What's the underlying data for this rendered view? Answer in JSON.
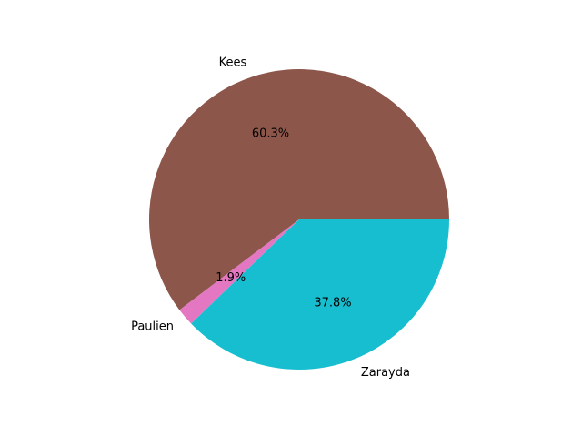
{
  "chart_data": {
    "type": "pie",
    "categories": [
      "Kees",
      "Paulien",
      "Zarayda"
    ],
    "values": [
      60.3,
      1.9,
      37.8
    ],
    "percent_labels": [
      "60.3%",
      "1.9%",
      "37.8%"
    ],
    "colors": [
      "#8c564b",
      "#e377c2",
      "#17becf"
    ],
    "start_angle_deg": 0,
    "direction": "counterclockwise",
    "legend": "none"
  }
}
